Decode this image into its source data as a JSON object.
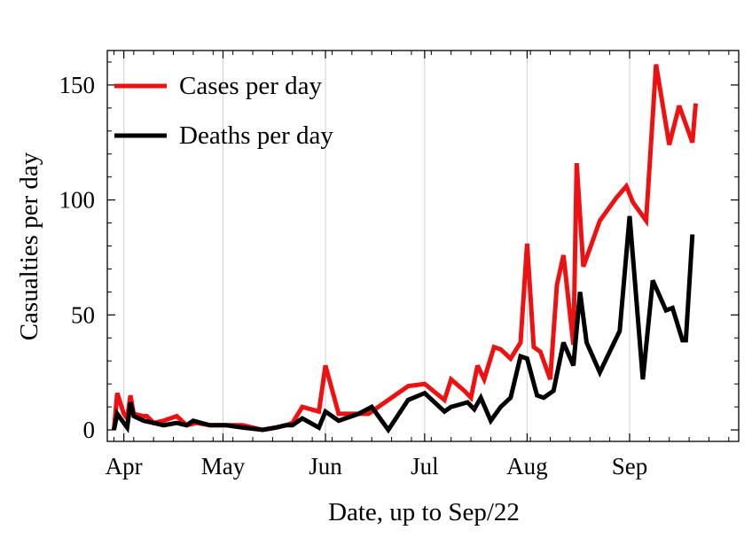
{
  "chart_data": {
    "type": "line",
    "xlabel": "Date, up to Sep/22",
    "ylabel": "Casualties per day",
    "x_ticks": [
      {
        "label": "Apr",
        "day": 3
      },
      {
        "label": "May",
        "day": 33
      },
      {
        "label": "Jun",
        "day": 64
      },
      {
        "label": "Jul",
        "day": 94
      },
      {
        "label": "Aug",
        "day": 125
      },
      {
        "label": "Sep",
        "day": 156
      }
    ],
    "y_ticks": [
      0,
      50,
      100,
      150
    ],
    "xlim": [
      -2,
      189
    ],
    "ylim": [
      -5,
      165
    ],
    "grid": "vertical at month starts",
    "legend_position": "top-left",
    "series": [
      {
        "name": "Cases per day",
        "color": "#ee1111",
        "points": [
          [
            0,
            0
          ],
          [
            1,
            16
          ],
          [
            3,
            7
          ],
          [
            4,
            5
          ],
          [
            5,
            15
          ],
          [
            6,
            7
          ],
          [
            9,
            6
          ],
          [
            10,
            6
          ],
          [
            12,
            3
          ],
          [
            15,
            4
          ],
          [
            19,
            6
          ],
          [
            22,
            2
          ],
          [
            25,
            3
          ],
          [
            29,
            2
          ],
          [
            34,
            2
          ],
          [
            39,
            2
          ],
          [
            45,
            0
          ],
          [
            49,
            1
          ],
          [
            52,
            2
          ],
          [
            54,
            3
          ],
          [
            57,
            10
          ],
          [
            62,
            8
          ],
          [
            64,
            28
          ],
          [
            68,
            7
          ],
          [
            74,
            7
          ],
          [
            77,
            7
          ],
          [
            82,
            12
          ],
          [
            89,
            19
          ],
          [
            94,
            20
          ],
          [
            100,
            13
          ],
          [
            102,
            22
          ],
          [
            106,
            17
          ],
          [
            108,
            14
          ],
          [
            110,
            28
          ],
          [
            112,
            22
          ],
          [
            115,
            36
          ],
          [
            117,
            35
          ],
          [
            120,
            31
          ],
          [
            123,
            38
          ],
          [
            125,
            81
          ],
          [
            127,
            36
          ],
          [
            129,
            34
          ],
          [
            132,
            22
          ],
          [
            134,
            63
          ],
          [
            136,
            76
          ],
          [
            139,
            37
          ],
          [
            140,
            116
          ],
          [
            142,
            71
          ],
          [
            144,
            79
          ],
          [
            147,
            91
          ],
          [
            152,
            101
          ],
          [
            155,
            106
          ],
          [
            157,
            99
          ],
          [
            161,
            91
          ],
          [
            164,
            159
          ],
          [
            168,
            124
          ],
          [
            171,
            141
          ],
          [
            175,
            125
          ],
          [
            176,
            142
          ]
        ]
      },
      {
        "name": "Deaths per day",
        "color": "#000000",
        "points": [
          [
            0,
            0
          ],
          [
            1,
            7
          ],
          [
            3,
            3
          ],
          [
            4,
            1
          ],
          [
            5,
            12
          ],
          [
            6,
            6
          ],
          [
            9,
            4
          ],
          [
            12,
            3
          ],
          [
            15,
            2
          ],
          [
            19,
            3
          ],
          [
            22,
            2
          ],
          [
            24,
            4
          ],
          [
            29,
            2
          ],
          [
            34,
            2
          ],
          [
            39,
            1
          ],
          [
            45,
            0
          ],
          [
            49,
            1
          ],
          [
            52,
            2
          ],
          [
            54,
            2
          ],
          [
            57,
            5
          ],
          [
            62,
            1
          ],
          [
            64,
            8
          ],
          [
            68,
            4
          ],
          [
            74,
            7
          ],
          [
            78,
            10
          ],
          [
            83,
            0
          ],
          [
            89,
            13
          ],
          [
            94,
            16
          ],
          [
            100,
            8
          ],
          [
            102,
            10
          ],
          [
            107,
            12
          ],
          [
            109,
            9
          ],
          [
            111,
            14
          ],
          [
            114,
            4
          ],
          [
            117,
            10
          ],
          [
            120,
            14
          ],
          [
            123,
            32
          ],
          [
            125,
            31
          ],
          [
            128,
            15
          ],
          [
            130,
            14
          ],
          [
            133,
            17
          ],
          [
            136,
            38
          ],
          [
            139,
            28
          ],
          [
            141,
            60
          ],
          [
            143,
            38
          ],
          [
            147,
            25
          ],
          [
            151,
            37
          ],
          [
            153,
            43
          ],
          [
            156,
            93
          ],
          [
            160,
            22
          ],
          [
            163,
            65
          ],
          [
            167,
            52
          ],
          [
            169,
            53
          ],
          [
            172,
            39
          ],
          [
            173,
            39
          ],
          [
            175,
            85
          ]
        ]
      }
    ]
  }
}
